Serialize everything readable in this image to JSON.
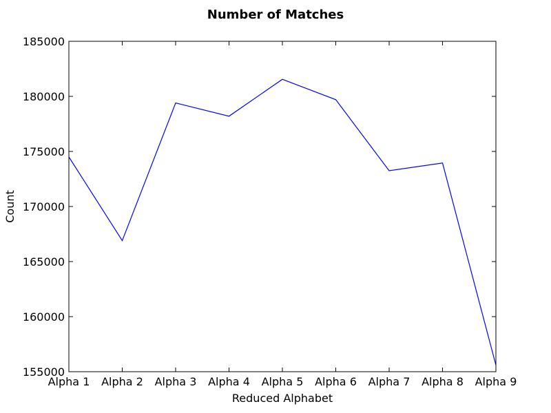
{
  "chart_data": {
    "type": "line",
    "title": "Number of Matches",
    "xlabel": "Reduced Alphabet",
    "ylabel": "Count",
    "categories": [
      "Alpha 1",
      "Alpha 2",
      "Alpha 3",
      "Alpha 4",
      "Alpha 5",
      "Alpha 6",
      "Alpha 7",
      "Alpha 8",
      "Alpha 9"
    ],
    "series": [
      {
        "color": "#0000ff",
        "values": [
          174500,
          166900,
          179400,
          178200,
          181550,
          179700,
          173250,
          173950,
          155600
        ]
      }
    ],
    "ylim": [
      155000,
      185000
    ],
    "yticks": [
      155000,
      160000,
      165000,
      170000,
      175000,
      180000,
      185000
    ],
    "ytick_labels": [
      "155000",
      "160000",
      "165000",
      "170000",
      "175000",
      "180000",
      "185000"
    ],
    "grid": false,
    "legend": "none"
  }
}
